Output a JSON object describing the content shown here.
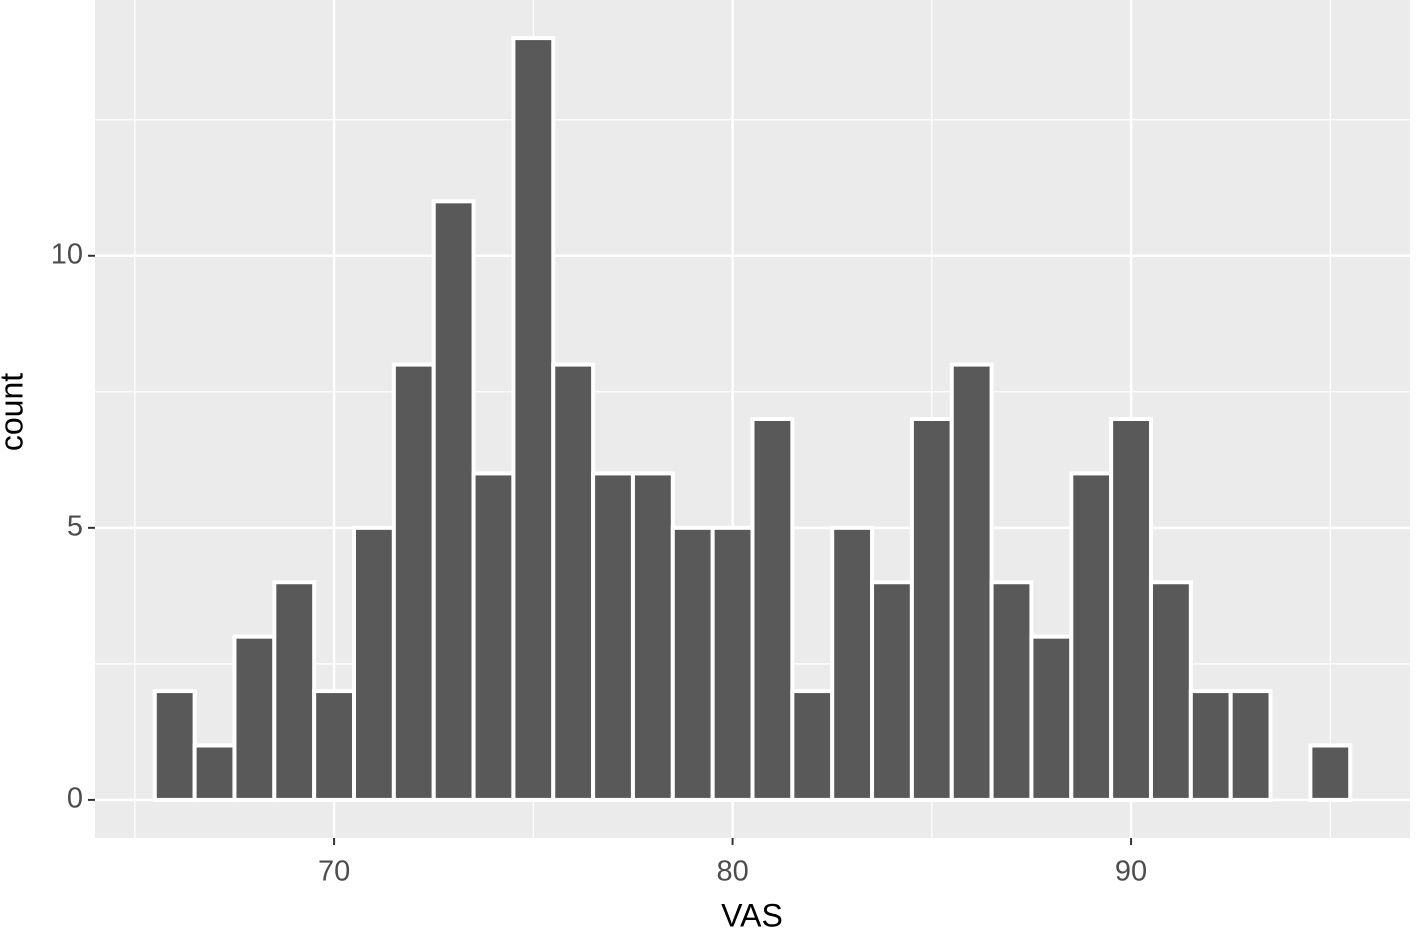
{
  "chart_data": {
    "type": "histogram",
    "x_label": "VAS",
    "y_label": "count",
    "bins": [
      65.5,
      66.5,
      67.5,
      68.5,
      69.5,
      70.5,
      71.5,
      72.5,
      73.5,
      74.5,
      75.5,
      76.5,
      77.5,
      78.5,
      79.5,
      80.5,
      81.5,
      82.5,
      83.5,
      84.5,
      85.5,
      86.5,
      87.5,
      88.5,
      89.5,
      90.5,
      91.5,
      92.5,
      93.5,
      94.5,
      95.5
    ],
    "values": [
      2,
      1,
      3,
      4,
      2,
      5,
      8,
      11,
      6,
      14,
      8,
      6,
      6,
      5,
      5,
      7,
      2,
      5,
      4,
      7,
      8,
      4,
      3,
      6,
      7,
      4,
      2,
      2,
      0,
      1
    ],
    "color": "#595959",
    "xlim": [
      64,
      97
    ],
    "xticks": [
      70,
      80,
      90
    ],
    "xminor": [
      65,
      75,
      85,
      95
    ],
    "ylim": [
      -0.7,
      14.7
    ],
    "yticks": [
      0,
      5,
      10
    ],
    "yminor": [
      2.5,
      7.5,
      12.5
    ],
    "grid": true
  }
}
